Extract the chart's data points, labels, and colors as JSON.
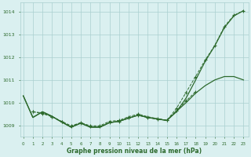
{
  "x": [
    0,
    1,
    2,
    3,
    4,
    5,
    6,
    7,
    8,
    9,
    10,
    11,
    12,
    13,
    14,
    15,
    16,
    17,
    18,
    19,
    20,
    21,
    22,
    23
  ],
  "line_smooth_upper": [
    1010.3,
    1009.35,
    1009.6,
    1009.4,
    1009.15,
    1008.92,
    1009.1,
    1008.92,
    1008.92,
    1009.12,
    1009.18,
    1009.32,
    1009.45,
    1009.35,
    1009.28,
    1009.22,
    1009.6,
    1010.2,
    1011.0,
    1011.82,
    1012.5,
    1013.3,
    1013.82,
    1014.05
  ],
  "line_smooth_lower_x": [
    0,
    1,
    2,
    3,
    4,
    5,
    6,
    7,
    8,
    9,
    10,
    11,
    12,
    13,
    14,
    15,
    16,
    17,
    18,
    19,
    20,
    21,
    22,
    23
  ],
  "line_smooth_lower": [
    1010.3,
    1009.35,
    1009.6,
    1009.4,
    1009.15,
    1008.92,
    1009.1,
    1008.92,
    1008.92,
    1009.12,
    1009.18,
    1009.32,
    1009.45,
    1009.35,
    1009.28,
    1009.22,
    1009.62,
    1010.0,
    1010.42,
    1010.75,
    1011.0,
    1011.15,
    1011.15,
    1011.0
  ],
  "line_dot_upper_x": [
    1,
    2,
    3,
    4,
    5,
    6,
    7,
    8,
    9,
    10,
    11,
    12,
    13,
    14,
    15,
    16,
    17,
    18,
    19,
    20,
    21,
    22,
    23
  ],
  "line_dot_upper": [
    1009.6,
    1009.55,
    1009.38,
    1009.18,
    1008.98,
    1009.12,
    1008.98,
    1008.98,
    1009.18,
    1009.22,
    1009.38,
    1009.5,
    1009.38,
    1009.3,
    1009.22,
    1009.75,
    1010.45,
    1011.15,
    1011.88,
    1012.52,
    1013.35,
    1013.85,
    1014.05
  ],
  "line_dot_lower_x": [
    1,
    2,
    3,
    4,
    5,
    6,
    7,
    8,
    9,
    10,
    11,
    12,
    13,
    14,
    15,
    16,
    17,
    18
  ],
  "line_dot_lower": [
    1009.6,
    1009.52,
    1009.38,
    1009.15,
    1008.95,
    1009.1,
    1008.95,
    1008.95,
    1009.12,
    1009.18,
    1009.32,
    1009.45,
    1009.35,
    1009.28,
    1009.22,
    1009.65,
    1010.08,
    1010.48
  ],
  "color": "#2d6a2d",
  "bg_color": "#daf0f0",
  "grid_color": "#aacfcf",
  "ylabel_ticks": [
    1009,
    1010,
    1011,
    1012,
    1013,
    1014
  ],
  "xlabel_ticks": [
    0,
    1,
    2,
    3,
    4,
    5,
    6,
    7,
    8,
    9,
    10,
    11,
    12,
    13,
    14,
    15,
    16,
    17,
    18,
    19,
    20,
    21,
    22,
    23
  ],
  "xlabel_label": "Graphe pression niveau de la mer (hPa)",
  "ylim": [
    1008.5,
    1014.4
  ],
  "xlim": [
    -0.3,
    23.5
  ]
}
